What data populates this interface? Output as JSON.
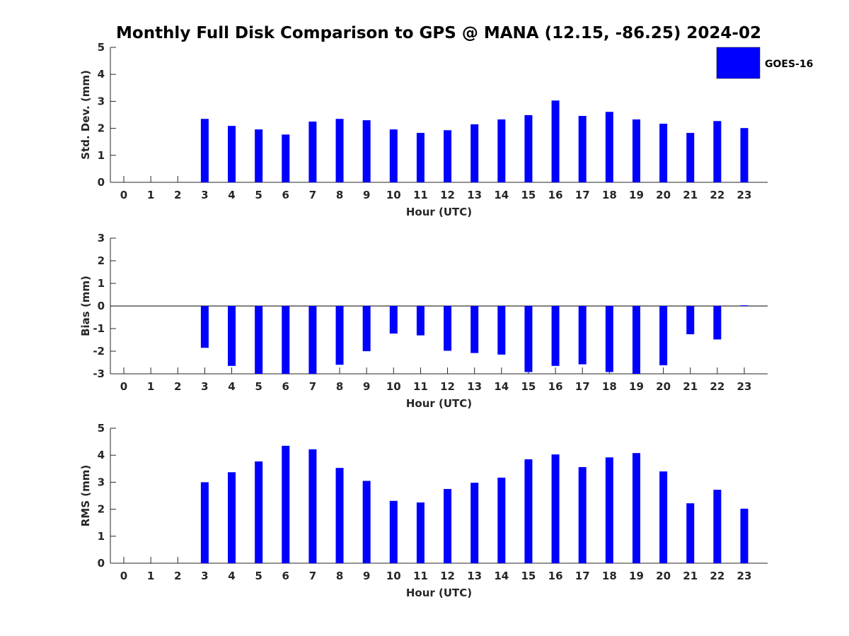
{
  "figure": {
    "title": "Monthly Full Disk Comparison to GPS @ MANA (12.15, -86.25) 2024-02",
    "legend": {
      "label": "GOES-16",
      "color": "#0000ff",
      "placement": "top-right"
    }
  },
  "chart_data": [
    {
      "type": "bar",
      "name": "std-dev",
      "xlabel": "Hour (UTC)",
      "ylabel": "Std. Dev. (mm)",
      "ylim": [
        0,
        5
      ],
      "yticks": [
        0,
        1,
        2,
        3,
        4,
        5
      ],
      "categories": [
        0,
        1,
        2,
        3,
        4,
        5,
        6,
        7,
        8,
        9,
        10,
        11,
        12,
        13,
        14,
        15,
        16,
        17,
        18,
        19,
        20,
        21,
        22,
        23
      ],
      "series": [
        {
          "name": "GOES-16",
          "color": "#0000ff",
          "values": [
            null,
            null,
            null,
            2.35,
            2.09,
            1.96,
            1.77,
            2.25,
            2.35,
            2.3,
            1.96,
            1.83,
            1.93,
            2.15,
            2.33,
            2.49,
            3.03,
            2.46,
            2.61,
            2.33,
            2.17,
            1.83,
            2.27,
            2.01
          ]
        }
      ]
    },
    {
      "type": "bar",
      "name": "bias",
      "xlabel": "Hour (UTC)",
      "ylabel": "Bias (mm)",
      "ylim": [
        -3,
        3
      ],
      "yticks": [
        -3,
        -2,
        -1,
        0,
        1,
        2,
        3
      ],
      "categories": [
        0,
        1,
        2,
        3,
        4,
        5,
        6,
        7,
        8,
        9,
        10,
        11,
        12,
        13,
        14,
        15,
        16,
        17,
        18,
        19,
        20,
        21,
        22,
        23
      ],
      "series": [
        {
          "name": "GOES-16",
          "color": "#0000ff",
          "values": [
            null,
            null,
            null,
            -1.85,
            -2.65,
            -3.0,
            -3.0,
            -3.0,
            -2.6,
            -2.0,
            -1.22,
            -1.3,
            -1.98,
            -2.08,
            -2.15,
            -2.92,
            -2.65,
            -2.58,
            -2.92,
            -3.0,
            -2.62,
            -1.25,
            -1.48,
            0.03
          ]
        }
      ]
    },
    {
      "type": "bar",
      "name": "rms",
      "xlabel": "Hour (UTC)",
      "ylabel": "RMS (mm)",
      "ylim": [
        0,
        5
      ],
      "yticks": [
        0,
        1,
        2,
        3,
        4,
        5
      ],
      "categories": [
        0,
        1,
        2,
        3,
        4,
        5,
        6,
        7,
        8,
        9,
        10,
        11,
        12,
        13,
        14,
        15,
        16,
        17,
        18,
        19,
        20,
        21,
        22,
        23
      ],
      "series": [
        {
          "name": "GOES-16",
          "color": "#0000ff",
          "values": [
            null,
            null,
            null,
            3.0,
            3.37,
            3.77,
            4.35,
            4.22,
            3.53,
            3.05,
            2.31,
            2.25,
            2.75,
            2.98,
            3.17,
            3.85,
            4.03,
            3.56,
            3.92,
            4.08,
            3.4,
            2.22,
            2.72,
            2.02
          ]
        }
      ]
    }
  ]
}
